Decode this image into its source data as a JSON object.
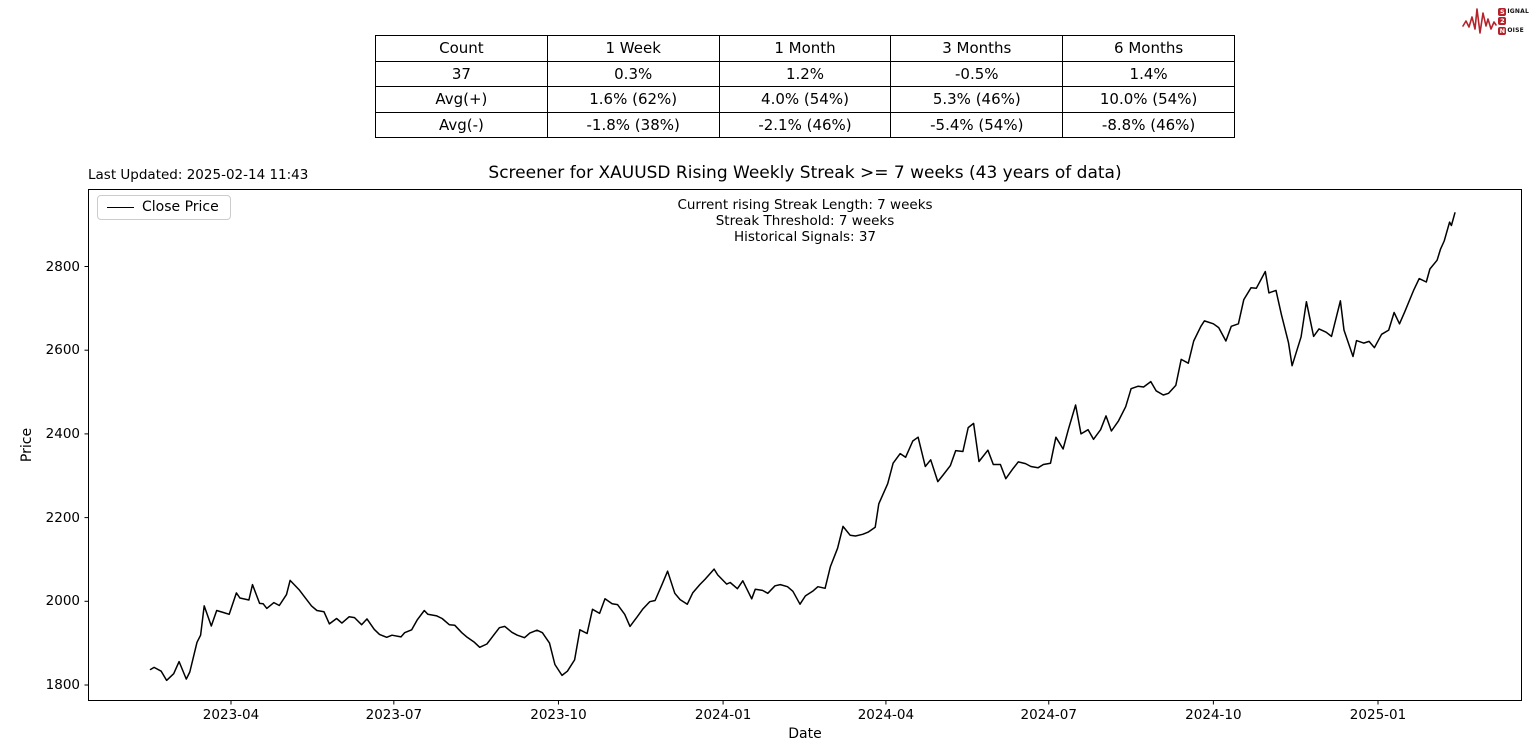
{
  "logo": {
    "line1_badge": "S",
    "line1_rest": "IGNAL",
    "line2_badge": "2",
    "line3_badge": "N",
    "line3_rest": "OISE",
    "accent_color": "#b5232a"
  },
  "last_updated": "Last Updated: 2025-02-14 11:43",
  "stats_table": {
    "columns": [
      "Count",
      "1 Week",
      "1 Month",
      "3 Months",
      "6 Months"
    ],
    "rows": [
      [
        "37",
        "0.3%",
        "1.2%",
        "-0.5%",
        "1.4%"
      ],
      [
        "Avg(+)",
        "1.6% (62%)",
        "4.0% (54%)",
        "5.3% (46%)",
        "10.0% (54%)"
      ],
      [
        "Avg(-)",
        "-1.8% (38%)",
        "-2.1% (46%)",
        "-5.4% (54%)",
        "-8.8% (46%)"
      ]
    ]
  },
  "chart_data": {
    "type": "line",
    "title": "Screener for XAUUSD Rising Weekly Streak >= 7 weeks (43 years of data)",
    "xlabel": "Date",
    "ylabel": "Price",
    "legend": [
      "Close Price"
    ],
    "legend_position": "upper left",
    "annotations": [
      "Current rising Streak Length: 7 weeks",
      "Streak Threshold: 7 weeks",
      "Historical Signals: 37"
    ],
    "line_color": "#000000",
    "grid": false,
    "x_ticks": [
      "2023-04",
      "2023-07",
      "2023-10",
      "2024-01",
      "2024-04",
      "2024-07",
      "2024-10",
      "2025-01"
    ],
    "y_ticks": [
      1800,
      2000,
      2200,
      2400,
      2600,
      2800
    ],
    "ylim": [
      1762,
      2985
    ],
    "x_range": [
      "2023-02-15",
      "2025-02-13"
    ],
    "series": [
      {
        "name": "Close Price",
        "points": [
          [
            "2023-02-15",
            1837
          ],
          [
            "2023-02-17",
            1842
          ],
          [
            "2023-02-21",
            1833
          ],
          [
            "2023-02-24",
            1811
          ],
          [
            "2023-02-28",
            1827
          ],
          [
            "2023-03-03",
            1856
          ],
          [
            "2023-03-07",
            1814
          ],
          [
            "2023-03-09",
            1831
          ],
          [
            "2023-03-13",
            1902
          ],
          [
            "2023-03-15",
            1919
          ],
          [
            "2023-03-17",
            1989
          ],
          [
            "2023-03-21",
            1941
          ],
          [
            "2023-03-24",
            1978
          ],
          [
            "2023-03-28",
            1973
          ],
          [
            "2023-03-31",
            1969
          ],
          [
            "2023-04-04",
            2020
          ],
          [
            "2023-04-06",
            2008
          ],
          [
            "2023-04-11",
            2003
          ],
          [
            "2023-04-13",
            2040
          ],
          [
            "2023-04-17",
            1995
          ],
          [
            "2023-04-19",
            1994
          ],
          [
            "2023-04-21",
            1983
          ],
          [
            "2023-04-25",
            1997
          ],
          [
            "2023-04-28",
            1990
          ],
          [
            "2023-05-02",
            2016
          ],
          [
            "2023-05-04",
            2050
          ],
          [
            "2023-05-09",
            2028
          ],
          [
            "2023-05-12",
            2011
          ],
          [
            "2023-05-16",
            1989
          ],
          [
            "2023-05-19",
            1978
          ],
          [
            "2023-05-23",
            1975
          ],
          [
            "2023-05-26",
            1946
          ],
          [
            "2023-05-30",
            1959
          ],
          [
            "2023-06-02",
            1948
          ],
          [
            "2023-06-06",
            1963
          ],
          [
            "2023-06-09",
            1961
          ],
          [
            "2023-06-13",
            1944
          ],
          [
            "2023-06-16",
            1958
          ],
          [
            "2023-06-20",
            1933
          ],
          [
            "2023-06-23",
            1921
          ],
          [
            "2023-06-27",
            1914
          ],
          [
            "2023-06-30",
            1919
          ],
          [
            "2023-07-05",
            1915
          ],
          [
            "2023-07-07",
            1925
          ],
          [
            "2023-07-11",
            1932
          ],
          [
            "2023-07-14",
            1955
          ],
          [
            "2023-07-18",
            1978
          ],
          [
            "2023-07-20",
            1969
          ],
          [
            "2023-07-25",
            1965
          ],
          [
            "2023-07-28",
            1959
          ],
          [
            "2023-08-01",
            1944
          ],
          [
            "2023-08-04",
            1943
          ],
          [
            "2023-08-08",
            1925
          ],
          [
            "2023-08-11",
            1914
          ],
          [
            "2023-08-15",
            1902
          ],
          [
            "2023-08-18",
            1890
          ],
          [
            "2023-08-22",
            1898
          ],
          [
            "2023-08-25",
            1915
          ],
          [
            "2023-08-29",
            1937
          ],
          [
            "2023-09-01",
            1940
          ],
          [
            "2023-09-05",
            1926
          ],
          [
            "2023-09-08",
            1919
          ],
          [
            "2023-09-12",
            1913
          ],
          [
            "2023-09-15",
            1924
          ],
          [
            "2023-09-19",
            1931
          ],
          [
            "2023-09-22",
            1925
          ],
          [
            "2023-09-26",
            1900
          ],
          [
            "2023-09-29",
            1849
          ],
          [
            "2023-10-03",
            1823
          ],
          [
            "2023-10-06",
            1833
          ],
          [
            "2023-10-10",
            1860
          ],
          [
            "2023-10-13",
            1932
          ],
          [
            "2023-10-17",
            1923
          ],
          [
            "2023-10-20",
            1981
          ],
          [
            "2023-10-24",
            1971
          ],
          [
            "2023-10-27",
            2006
          ],
          [
            "2023-10-31",
            1994
          ],
          [
            "2023-11-03",
            1992
          ],
          [
            "2023-11-07",
            1969
          ],
          [
            "2023-11-10",
            1940
          ],
          [
            "2023-11-14",
            1963
          ],
          [
            "2023-11-17",
            1981
          ],
          [
            "2023-11-21",
            1999
          ],
          [
            "2023-11-24",
            2002
          ],
          [
            "2023-11-28",
            2041
          ],
          [
            "2023-12-01",
            2072
          ],
          [
            "2023-12-05",
            2019
          ],
          [
            "2023-12-08",
            2004
          ],
          [
            "2023-12-12",
            1993
          ],
          [
            "2023-12-15",
            2020
          ],
          [
            "2023-12-19",
            2040
          ],
          [
            "2023-12-22",
            2053
          ],
          [
            "2023-12-27",
            2077
          ],
          [
            "2023-12-29",
            2063
          ],
          [
            "2024-01-03",
            2041
          ],
          [
            "2024-01-05",
            2045
          ],
          [
            "2024-01-09",
            2030
          ],
          [
            "2024-01-12",
            2049
          ],
          [
            "2024-01-17",
            2006
          ],
          [
            "2024-01-19",
            2029
          ],
          [
            "2024-01-23",
            2026
          ],
          [
            "2024-01-26",
            2019
          ],
          [
            "2024-01-30",
            2037
          ],
          [
            "2024-02-02",
            2040
          ],
          [
            "2024-02-06",
            2035
          ],
          [
            "2024-02-09",
            2024
          ],
          [
            "2024-02-13",
            1993
          ],
          [
            "2024-02-16",
            2013
          ],
          [
            "2024-02-20",
            2024
          ],
          [
            "2024-02-23",
            2035
          ],
          [
            "2024-02-27",
            2031
          ],
          [
            "2024-03-01",
            2083
          ],
          [
            "2024-03-05",
            2127
          ],
          [
            "2024-03-08",
            2179
          ],
          [
            "2024-03-12",
            2158
          ],
          [
            "2024-03-15",
            2156
          ],
          [
            "2024-03-19",
            2160
          ],
          [
            "2024-03-22",
            2165
          ],
          [
            "2024-03-26",
            2177
          ],
          [
            "2024-03-28",
            2233
          ],
          [
            "2024-04-02",
            2281
          ],
          [
            "2024-04-05",
            2330
          ],
          [
            "2024-04-09",
            2353
          ],
          [
            "2024-04-12",
            2344
          ],
          [
            "2024-04-16",
            2383
          ],
          [
            "2024-04-19",
            2392
          ],
          [
            "2024-04-23",
            2322
          ],
          [
            "2024-04-26",
            2338
          ],
          [
            "2024-04-30",
            2286
          ],
          [
            "2024-05-03",
            2302
          ],
          [
            "2024-05-07",
            2324
          ],
          [
            "2024-05-10",
            2360
          ],
          [
            "2024-05-14",
            2358
          ],
          [
            "2024-05-17",
            2415
          ],
          [
            "2024-05-20",
            2425
          ],
          [
            "2024-05-23",
            2334
          ],
          [
            "2024-05-28",
            2361
          ],
          [
            "2024-05-31",
            2327
          ],
          [
            "2024-06-04",
            2327
          ],
          [
            "2024-06-07",
            2293
          ],
          [
            "2024-06-11",
            2317
          ],
          [
            "2024-06-14",
            2333
          ],
          [
            "2024-06-18",
            2329
          ],
          [
            "2024-06-21",
            2322
          ],
          [
            "2024-06-25",
            2319
          ],
          [
            "2024-06-28",
            2327
          ],
          [
            "2024-07-02",
            2330
          ],
          [
            "2024-07-05",
            2392
          ],
          [
            "2024-07-09",
            2364
          ],
          [
            "2024-07-12",
            2411
          ],
          [
            "2024-07-16",
            2469
          ],
          [
            "2024-07-19",
            2400
          ],
          [
            "2024-07-23",
            2410
          ],
          [
            "2024-07-26",
            2387
          ],
          [
            "2024-07-30",
            2410
          ],
          [
            "2024-08-02",
            2443
          ],
          [
            "2024-08-05",
            2407
          ],
          [
            "2024-08-09",
            2431
          ],
          [
            "2024-08-13",
            2465
          ],
          [
            "2024-08-16",
            2508
          ],
          [
            "2024-08-20",
            2514
          ],
          [
            "2024-08-23",
            2512
          ],
          [
            "2024-08-27",
            2525
          ],
          [
            "2024-08-30",
            2503
          ],
          [
            "2024-09-03",
            2493
          ],
          [
            "2024-09-06",
            2497
          ],
          [
            "2024-09-10",
            2516
          ],
          [
            "2024-09-13",
            2578
          ],
          [
            "2024-09-17",
            2569
          ],
          [
            "2024-09-20",
            2622
          ],
          [
            "2024-09-24",
            2657
          ],
          [
            "2024-09-26",
            2670
          ],
          [
            "2024-10-01",
            2663
          ],
          [
            "2024-10-04",
            2654
          ],
          [
            "2024-10-08",
            2622
          ],
          [
            "2024-10-11",
            2657
          ],
          [
            "2024-10-15",
            2663
          ],
          [
            "2024-10-18",
            2721
          ],
          [
            "2024-10-22",
            2749
          ],
          [
            "2024-10-25",
            2748
          ],
          [
            "2024-10-30",
            2788
          ],
          [
            "2024-11-01",
            2737
          ],
          [
            "2024-11-05",
            2743
          ],
          [
            "2024-11-08",
            2685
          ],
          [
            "2024-11-12",
            2618
          ],
          [
            "2024-11-14",
            2563
          ],
          [
            "2024-11-19",
            2632
          ],
          [
            "2024-11-22",
            2716
          ],
          [
            "2024-11-26",
            2633
          ],
          [
            "2024-11-29",
            2651
          ],
          [
            "2024-12-03",
            2643
          ],
          [
            "2024-12-06",
            2633
          ],
          [
            "2024-12-11",
            2718
          ],
          [
            "2024-12-13",
            2648
          ],
          [
            "2024-12-18",
            2585
          ],
          [
            "2024-12-20",
            2623
          ],
          [
            "2024-12-24",
            2617
          ],
          [
            "2024-12-27",
            2621
          ],
          [
            "2024-12-30",
            2606
          ],
          [
            "2025-01-03",
            2638
          ],
          [
            "2025-01-07",
            2648
          ],
          [
            "2025-01-10",
            2690
          ],
          [
            "2025-01-13",
            2663
          ],
          [
            "2025-01-16",
            2692
          ],
          [
            "2025-01-21",
            2744
          ],
          [
            "2025-01-24",
            2771
          ],
          [
            "2025-01-28",
            2763
          ],
          [
            "2025-01-30",
            2794
          ],
          [
            "2025-02-03",
            2815
          ],
          [
            "2025-02-05",
            2842
          ],
          [
            "2025-02-07",
            2861
          ],
          [
            "2025-02-10",
            2906
          ],
          [
            "2025-02-11",
            2898
          ],
          [
            "2025-02-13",
            2928
          ]
        ]
      }
    ]
  }
}
